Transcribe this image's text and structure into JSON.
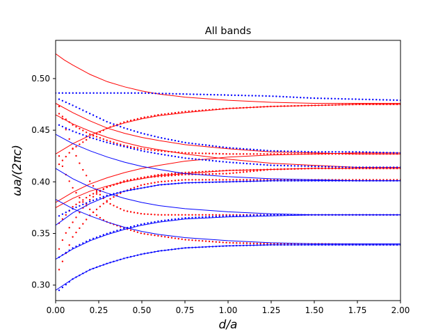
{
  "chart_data": {
    "type": "line",
    "title": "All bands",
    "xlabel": "d/a",
    "ylabel": "ωa/(2πc)",
    "xlim": [
      0.0,
      2.0
    ],
    "ylim": [
      0.285,
      0.537
    ],
    "xticks": [
      0.0,
      0.25,
      0.5,
      0.75,
      1.0,
      1.25,
      1.5,
      1.75,
      2.0
    ],
    "xtick_labels": [
      "0.00",
      "0.25",
      "0.50",
      "0.75",
      "1.00",
      "1.25",
      "1.50",
      "1.75",
      "2.00"
    ],
    "yticks": [
      0.3,
      0.35,
      0.4,
      0.45,
      0.5
    ],
    "ytick_labels": [
      "0.30",
      "0.35",
      "0.40",
      "0.45",
      "0.50"
    ],
    "colors": {
      "red": "#ff0000",
      "blue": "#0000ff"
    },
    "series": [
      {
        "name": "red-solid-1",
        "color": "red",
        "style": "solid",
        "x": [
          0.0,
          0.05,
          0.1,
          0.2,
          0.3,
          0.4,
          0.5,
          0.6,
          0.75,
          1.0,
          1.25,
          1.5,
          1.75,
          2.0
        ],
        "y": [
          0.524,
          0.518,
          0.513,
          0.504,
          0.497,
          0.492,
          0.488,
          0.485,
          0.482,
          0.479,
          0.477,
          0.476,
          0.476,
          0.476
        ]
      },
      {
        "name": "red-solid-2",
        "color": "red",
        "style": "solid",
        "x": [
          0.0,
          0.1,
          0.2,
          0.3,
          0.4,
          0.5,
          0.6,
          0.75,
          1.0,
          1.25,
          1.5,
          1.75,
          2.0
        ],
        "y": [
          0.476,
          0.467,
          0.459,
          0.452,
          0.447,
          0.443,
          0.44,
          0.436,
          0.432,
          0.429,
          0.428,
          0.427,
          0.427
        ]
      },
      {
        "name": "red-solid-3",
        "color": "red",
        "style": "solid",
        "x": [
          0.0,
          0.1,
          0.2,
          0.3,
          0.4,
          0.5,
          0.6,
          0.75,
          1.0,
          1.25,
          1.5,
          1.75,
          2.0
        ],
        "y": [
          0.427,
          0.437,
          0.445,
          0.452,
          0.457,
          0.461,
          0.464,
          0.467,
          0.471,
          0.473,
          0.474,
          0.475,
          0.475
        ]
      },
      {
        "name": "red-solid-4",
        "color": "red",
        "style": "solid",
        "x": [
          0.0,
          0.1,
          0.2,
          0.3,
          0.4,
          0.5,
          0.6,
          0.75,
          1.0,
          1.25,
          1.5,
          1.75,
          2.0
        ],
        "y": [
          0.465,
          0.456,
          0.449,
          0.443,
          0.438,
          0.434,
          0.431,
          0.427,
          0.422,
          0.418,
          0.416,
          0.414,
          0.414
        ]
      },
      {
        "name": "red-solid-5",
        "color": "red",
        "style": "solid",
        "x": [
          0.0,
          0.1,
          0.2,
          0.3,
          0.4,
          0.5,
          0.6,
          0.75,
          1.0,
          1.25,
          1.5,
          1.75,
          2.0
        ],
        "y": [
          0.38,
          0.39,
          0.398,
          0.404,
          0.409,
          0.413,
          0.416,
          0.42,
          0.424,
          0.426,
          0.427,
          0.428,
          0.428
        ]
      },
      {
        "name": "red-solid-6",
        "color": "red",
        "style": "solid",
        "x": [
          0.0,
          0.1,
          0.2,
          0.3,
          0.4,
          0.5,
          0.6,
          0.75,
          1.0,
          1.25,
          1.5,
          1.75,
          2.0
        ],
        "y": [
          0.375,
          0.384,
          0.391,
          0.396,
          0.4,
          0.403,
          0.406,
          0.408,
          0.411,
          0.412,
          0.413,
          0.413,
          0.413
        ]
      },
      {
        "name": "red-dotted-1",
        "color": "red",
        "style": "dotted",
        "x": [
          0.02,
          0.1,
          0.2,
          0.3,
          0.4,
          0.5,
          0.6,
          0.75,
          1.0,
          1.25,
          1.5,
          1.75,
          2.0
        ],
        "y": [
          0.417,
          0.432,
          0.443,
          0.452,
          0.458,
          0.462,
          0.465,
          0.468,
          0.471,
          0.473,
          0.474,
          0.475,
          0.475
        ]
      },
      {
        "name": "red-dotted-2",
        "color": "red",
        "style": "dotted",
        "x": [
          0.02,
          0.1,
          0.2,
          0.3,
          0.4,
          0.5,
          0.6,
          0.75,
          1.0,
          1.25,
          1.5,
          1.75,
          2.0
        ],
        "y": [
          0.466,
          0.455,
          0.446,
          0.44,
          0.435,
          0.432,
          0.43,
          0.428,
          0.427,
          0.427,
          0.427,
          0.427,
          0.427
        ]
      },
      {
        "name": "red-dotted-3",
        "color": "red",
        "style": "dotted",
        "x": [
          0.02,
          0.1,
          0.2,
          0.3,
          0.4,
          0.5,
          0.6,
          0.75,
          1.0,
          1.25,
          1.5,
          1.75,
          2.0
        ],
        "y": [
          0.36,
          0.376,
          0.387,
          0.395,
          0.4,
          0.404,
          0.407,
          0.409,
          0.411,
          0.412,
          0.413,
          0.413,
          0.413
        ]
      },
      {
        "name": "red-dotted-4",
        "color": "red",
        "style": "dotted",
        "x": [
          0.02,
          0.1,
          0.2,
          0.3,
          0.4,
          0.5,
          0.6,
          0.75,
          1.0,
          1.25,
          1.5,
          1.75,
          2.0
        ],
        "y": [
          0.315,
          0.347,
          0.368,
          0.382,
          0.391,
          0.397,
          0.4,
          0.402,
          0.402,
          0.402,
          0.402,
          0.402,
          0.402
        ]
      },
      {
        "name": "red-dotted-5",
        "color": "red",
        "style": "dotted",
        "x": [
          0.02,
          0.05,
          0.1,
          0.15,
          0.2,
          0.25,
          0.3,
          0.4,
          0.5,
          0.6,
          0.75,
          1.0,
          1.25,
          1.5,
          2.0
        ],
        "y": [
          0.473,
          0.455,
          0.432,
          0.414,
          0.4,
          0.389,
          0.38,
          0.372,
          0.369,
          0.368,
          0.368,
          0.368,
          0.368,
          0.368,
          0.368
        ]
      },
      {
        "name": "red-dotted-6",
        "color": "red",
        "style": "dotted",
        "x": [
          0.02,
          0.05,
          0.1,
          0.15,
          0.2,
          0.25,
          0.3,
          0.4,
          0.5,
          0.75,
          1.0,
          1.25,
          1.5,
          2.0
        ],
        "y": [
          0.425,
          0.41,
          0.394,
          0.382,
          0.373,
          0.366,
          0.361,
          0.355,
          0.35,
          0.344,
          0.341,
          0.34,
          0.34,
          0.339
        ]
      },
      {
        "name": "red-dotted-7",
        "color": "red",
        "style": "dotted",
        "x": [
          0.02,
          0.05,
          0.1,
          0.15,
          0.2,
          0.25,
          0.3,
          0.4,
          0.5,
          0.75,
          1.0,
          1.25,
          1.5,
          2.0
        ],
        "y": [
          0.335,
          0.348,
          0.361,
          0.373,
          0.383,
          0.39,
          0.395,
          0.401,
          0.404,
          0.407,
          0.408,
          0.412,
          0.413,
          0.413
        ]
      },
      {
        "name": "blue-solid-1",
        "color": "blue",
        "style": "solid",
        "x": [
          0.0,
          0.1,
          0.2,
          0.3,
          0.4,
          0.5,
          0.6,
          0.75,
          1.0,
          1.25,
          1.5,
          1.75,
          2.0
        ],
        "y": [
          0.446,
          0.437,
          0.43,
          0.424,
          0.419,
          0.415,
          0.412,
          0.408,
          0.405,
          0.403,
          0.402,
          0.401,
          0.401
        ]
      },
      {
        "name": "blue-solid-2",
        "color": "blue",
        "style": "solid",
        "x": [
          0.0,
          0.1,
          0.2,
          0.3,
          0.4,
          0.5,
          0.6,
          0.75,
          1.0,
          1.25,
          1.5,
          1.75,
          2.0
        ],
        "y": [
          0.358,
          0.37,
          0.379,
          0.386,
          0.391,
          0.394,
          0.397,
          0.399,
          0.4,
          0.401,
          0.401,
          0.401,
          0.401
        ]
      },
      {
        "name": "blue-solid-3",
        "color": "blue",
        "style": "solid",
        "x": [
          0.0,
          0.1,
          0.2,
          0.3,
          0.4,
          0.5,
          0.6,
          0.75,
          1.0,
          1.25,
          1.5,
          1.75,
          2.0
        ],
        "y": [
          0.413,
          0.403,
          0.395,
          0.389,
          0.384,
          0.38,
          0.377,
          0.374,
          0.371,
          0.369,
          0.368,
          0.368,
          0.368
        ]
      },
      {
        "name": "blue-solid-4",
        "color": "blue",
        "style": "solid",
        "x": [
          0.0,
          0.1,
          0.2,
          0.3,
          0.4,
          0.5,
          0.6,
          0.75,
          1.0,
          1.25,
          1.5,
          1.75,
          2.0
        ],
        "y": [
          0.325,
          0.335,
          0.343,
          0.349,
          0.354,
          0.358,
          0.361,
          0.364,
          0.366,
          0.367,
          0.368,
          0.368,
          0.368
        ]
      },
      {
        "name": "blue-solid-5",
        "color": "blue",
        "style": "solid",
        "x": [
          0.0,
          0.1,
          0.2,
          0.3,
          0.4,
          0.5,
          0.6,
          0.75,
          1.0,
          1.25,
          1.5,
          1.75,
          2.0
        ],
        "y": [
          0.383,
          0.374,
          0.367,
          0.361,
          0.356,
          0.352,
          0.349,
          0.346,
          0.343,
          0.341,
          0.34,
          0.34,
          0.34
        ]
      },
      {
        "name": "blue-solid-6",
        "color": "blue",
        "style": "solid",
        "x": [
          0.0,
          0.1,
          0.2,
          0.3,
          0.4,
          0.5,
          0.6,
          0.75,
          1.0,
          1.25,
          1.5,
          1.75,
          2.0
        ],
        "y": [
          0.295,
          0.306,
          0.315,
          0.321,
          0.326,
          0.33,
          0.333,
          0.336,
          0.338,
          0.339,
          0.339,
          0.339,
          0.339
        ]
      },
      {
        "name": "blue-dotted-1",
        "color": "blue",
        "style": "dotted",
        "x": [
          0.0,
          0.25,
          0.5,
          0.75,
          1.0,
          1.25,
          1.5,
          1.75,
          2.0
        ],
        "y": [
          0.486,
          0.486,
          0.486,
          0.485,
          0.484,
          0.483,
          0.481,
          0.48,
          0.479
        ]
      },
      {
        "name": "blue-dotted-2",
        "color": "blue",
        "style": "dotted",
        "x": [
          0.02,
          0.1,
          0.2,
          0.3,
          0.4,
          0.5,
          0.6,
          0.75,
          1.0,
          1.25,
          1.5,
          1.75,
          2.0
        ],
        "y": [
          0.48,
          0.474,
          0.466,
          0.458,
          0.452,
          0.447,
          0.443,
          0.438,
          0.433,
          0.43,
          0.429,
          0.429,
          0.428
        ]
      },
      {
        "name": "blue-dotted-3",
        "color": "blue",
        "style": "dotted",
        "x": [
          0.02,
          0.1,
          0.2,
          0.3,
          0.4,
          0.5,
          0.6,
          0.75,
          1.0,
          1.25,
          1.5,
          1.75,
          2.0
        ],
        "y": [
          0.455,
          0.449,
          0.443,
          0.438,
          0.434,
          0.43,
          0.427,
          0.423,
          0.419,
          0.416,
          0.415,
          0.414,
          0.414
        ]
      },
      {
        "name": "blue-dotted-4",
        "color": "blue",
        "style": "dotted",
        "x": [
          0.02,
          0.1,
          0.2,
          0.3,
          0.4,
          0.5,
          0.6,
          0.75,
          1.0,
          1.25,
          1.5,
          1.75,
          2.0
        ],
        "y": [
          0.367,
          0.374,
          0.381,
          0.387,
          0.391,
          0.394,
          0.397,
          0.399,
          0.4,
          0.401,
          0.401,
          0.401,
          0.401
        ]
      },
      {
        "name": "blue-dotted-5",
        "color": "blue",
        "style": "dotted",
        "x": [
          0.02,
          0.1,
          0.2,
          0.3,
          0.4,
          0.5,
          0.6,
          0.75,
          1.0,
          1.25,
          1.5,
          1.75,
          2.0
        ],
        "y": [
          0.327,
          0.336,
          0.344,
          0.35,
          0.355,
          0.359,
          0.362,
          0.365,
          0.367,
          0.368,
          0.368,
          0.368,
          0.368
        ]
      },
      {
        "name": "blue-dotted-6",
        "color": "blue",
        "style": "dotted",
        "x": [
          0.02,
          0.1,
          0.2,
          0.3,
          0.4,
          0.5,
          0.6,
          0.75,
          1.0,
          1.25,
          1.5,
          1.75,
          2.0
        ],
        "y": [
          0.295,
          0.306,
          0.315,
          0.321,
          0.326,
          0.33,
          0.333,
          0.336,
          0.338,
          0.339,
          0.339,
          0.339,
          0.339
        ]
      }
    ]
  }
}
